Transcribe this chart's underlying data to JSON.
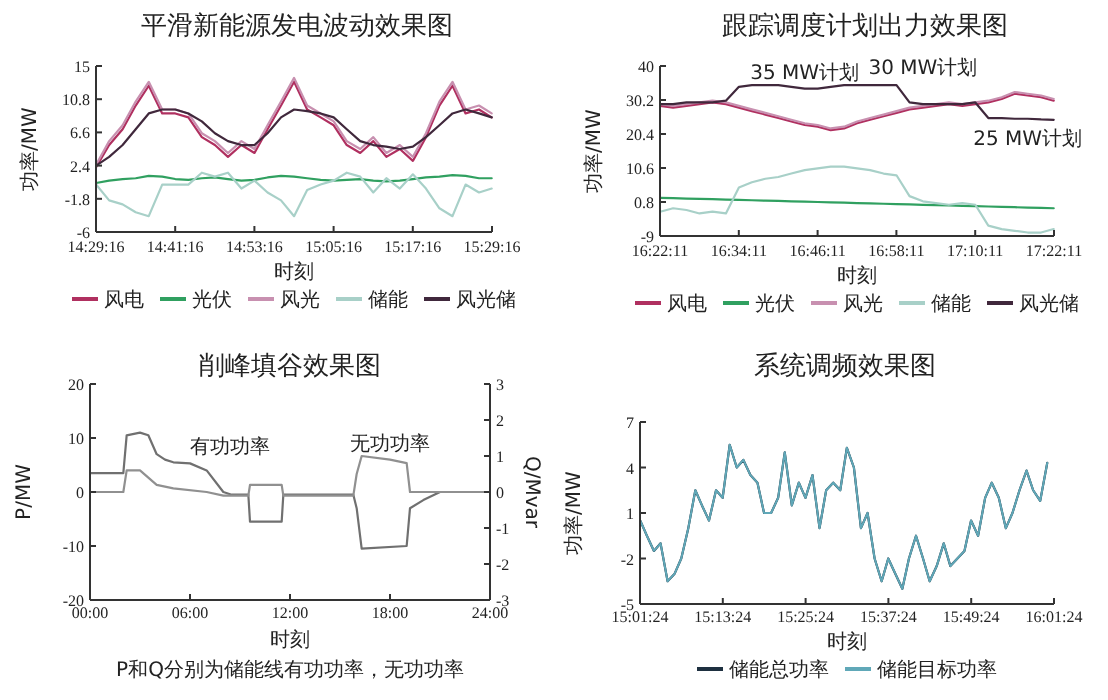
{
  "chart_data": [
    {
      "type": "line",
      "title": "平滑新能源发电波动效果图",
      "xlabel": "时刻",
      "ylabel": "功率/MW",
      "legend": "bottom",
      "xlim": [
        14.48778,
        15.48778
      ],
      "xticks": [
        {
          "value": 14.48778,
          "label": "14:29:16"
        },
        {
          "value": 14.68778,
          "label": "14:41:16"
        },
        {
          "value": 14.88778,
          "label": "14:53:16"
        },
        {
          "value": 15.08778,
          "label": "15:05:16"
        },
        {
          "value": 15.28778,
          "label": "15:17:16"
        },
        {
          "value": 15.48778,
          "label": "15:29:16"
        }
      ],
      "ylim": [
        -6,
        15
      ],
      "yticks": [
        -6,
        -1.8,
        2.4,
        6.6,
        10.8,
        15
      ],
      "x": [
        14.488,
        14.521,
        14.555,
        14.588,
        14.621,
        14.655,
        14.688,
        14.721,
        14.755,
        14.788,
        14.821,
        14.855,
        14.888,
        14.921,
        14.955,
        14.988,
        15.021,
        15.055,
        15.088,
        15.121,
        15.155,
        15.188,
        15.221,
        15.255,
        15.288,
        15.321,
        15.355,
        15.388,
        15.421,
        15.455,
        15.487
      ],
      "series": [
        {
          "name": "风电",
          "color": "#b03060",
          "values": [
            2.2,
            5,
            7,
            10,
            12.5,
            9,
            9,
            8.5,
            6,
            5,
            3.5,
            5,
            4,
            7,
            10,
            13,
            9.5,
            8.5,
            7.5,
            5,
            4,
            5.5,
            3.5,
            4.5,
            3,
            6,
            10,
            12.5,
            9,
            9.5,
            8.5
          ]
        },
        {
          "name": "光伏",
          "color": "#30a060",
          "values": [
            0.2,
            0.5,
            0.7,
            0.8,
            1.1,
            1,
            0.7,
            0.6,
            0.8,
            0.9,
            0.7,
            0.5,
            0.6,
            0.9,
            1.1,
            1,
            0.8,
            0.6,
            0.5,
            0.6,
            0.7,
            0.5,
            0.4,
            0.5,
            0.7,
            0.9,
            1,
            1.2,
            1.1,
            0.8,
            0.8
          ]
        },
        {
          "name": "风光",
          "color": "#c890b0",
          "values": [
            2.5,
            5.5,
            7.5,
            10.5,
            13,
            9.5,
            9.5,
            9,
            6.5,
            5.5,
            4,
            5.5,
            4.5,
            7.5,
            10.5,
            13.5,
            10,
            9,
            8,
            5.5,
            4.5,
            6,
            4,
            5,
            3.5,
            6.5,
            10.5,
            13,
            9.5,
            10,
            9
          ]
        },
        {
          "name": "储能",
          "color": "#a8d0c8",
          "values": [
            0,
            -2,
            -2.5,
            -3.5,
            -4,
            0,
            0,
            0,
            1.5,
            1,
            1.5,
            -0.5,
            0.5,
            -1,
            -2,
            -4,
            -0.7,
            0,
            0.5,
            1.5,
            1,
            -1,
            0.8,
            -0.5,
            1.3,
            -0.5,
            -3,
            -4,
            0,
            -1,
            -0.5
          ]
        },
        {
          "name": "风光储",
          "color": "#40283c",
          "values": [
            2.4,
            3.5,
            5,
            7,
            9,
            9.5,
            9.5,
            9,
            8,
            6.5,
            5.5,
            5,
            5,
            6.5,
            8.5,
            9.5,
            9.3,
            9,
            8.5,
            7,
            5.5,
            5,
            4.8,
            4.5,
            4.8,
            6,
            7.5,
            9,
            9.5,
            9,
            8.5
          ]
        }
      ]
    },
    {
      "type": "line",
      "title": "跟踪调度计划出力效果图",
      "xlabel": "时刻",
      "ylabel": "功率/MW",
      "legend": "bottom",
      "xlim": [
        16.36972,
        17.36972
      ],
      "xticks": [
        {
          "value": 16.36972,
          "label": "16:22:11"
        },
        {
          "value": 16.56972,
          "label": "16:34:11"
        },
        {
          "value": 16.76972,
          "label": "16:46:11"
        },
        {
          "value": 16.96972,
          "label": "16:58:11"
        },
        {
          "value": 17.16972,
          "label": "17:10:11"
        },
        {
          "value": 17.36972,
          "label": "17:22:11"
        }
      ],
      "ylim": [
        -9,
        40
      ],
      "yticks": [
        -9,
        0.8,
        10.6,
        20.4,
        30.2,
        40
      ],
      "annotations": [
        {
          "text": "35 MW计划",
          "x": 16.737,
          "y": 33.5
        },
        {
          "text": "30 MW计划",
          "x": 17.037,
          "y": 29
        },
        {
          "text": "25 MW计划",
          "x": 17.303,
          "y": 24.8
        }
      ],
      "x": [
        16.37,
        16.403,
        16.437,
        16.47,
        16.503,
        16.537,
        16.57,
        16.603,
        16.637,
        16.67,
        16.703,
        16.737,
        16.77,
        16.803,
        16.837,
        16.87,
        16.903,
        16.937,
        16.97,
        17.003,
        17.037,
        17.07,
        17.103,
        17.137,
        17.17,
        17.203,
        17.237,
        17.27,
        17.303,
        17.337,
        17.369
      ],
      "series": [
        {
          "name": "风电",
          "color": "#b03060",
          "values": [
            28.5,
            28,
            28.5,
            29,
            29.5,
            29,
            28,
            27,
            26,
            25,
            24,
            23,
            22.5,
            21.5,
            22,
            23.5,
            24.5,
            25.5,
            26.5,
            27.5,
            28,
            28.5,
            29,
            28.5,
            29,
            29.5,
            30.5,
            32,
            31.5,
            31,
            30
          ]
        },
        {
          "name": "光伏",
          "color": "#30a060",
          "values": [
            2,
            1.9,
            1.8,
            1.7,
            1.6,
            1.5,
            1.4,
            1.3,
            1.2,
            1.1,
            1,
            0.9,
            0.8,
            0.7,
            0.6,
            0.5,
            0.4,
            0.3,
            0.2,
            0.1,
            0,
            -0.1,
            -0.2,
            -0.3,
            -0.4,
            -0.5,
            -0.6,
            -0.7,
            -0.8,
            -0.9,
            -1
          ]
        },
        {
          "name": "风光",
          "color": "#c890b0",
          "values": [
            29,
            28.5,
            29,
            29.5,
            30,
            29.5,
            28.5,
            27.5,
            26.5,
            25.5,
            24.5,
            23.5,
            23,
            22,
            22.5,
            24,
            25,
            26,
            27,
            28,
            28.5,
            29,
            29.5,
            29,
            29.5,
            30,
            31,
            32.5,
            32,
            31.5,
            30.5
          ]
        },
        {
          "name": "储能",
          "color": "#a8d0c8",
          "values": [
            -2,
            -1,
            -1.5,
            -2.5,
            -2,
            -2.5,
            5,
            6.5,
            7.5,
            8,
            9,
            10,
            10.5,
            11,
            11,
            10.5,
            10,
            9,
            8.5,
            2.5,
            1,
            0.5,
            0,
            0.5,
            0,
            -6,
            -7,
            -7.5,
            -8,
            -8,
            -7
          ]
        },
        {
          "name": "风光储",
          "color": "#40283c",
          "values": [
            29,
            29,
            29.5,
            29.5,
            29.5,
            30,
            34,
            34.5,
            34.5,
            34.5,
            34,
            33.5,
            33.5,
            34,
            34.5,
            34.5,
            34.5,
            34.5,
            34.5,
            29.5,
            29,
            29,
            29,
            29,
            29.5,
            25,
            25,
            24.8,
            24.8,
            24.6,
            24.5
          ]
        }
      ]
    },
    {
      "type": "line",
      "title": "削峰填谷效果图",
      "xlabel": "时刻",
      "ylabel": "P/MW",
      "y2label": "Q/Mvar",
      "xlim": [
        0,
        24
      ],
      "xticks": [
        {
          "value": 0,
          "label": "00:00"
        },
        {
          "value": 6,
          "label": "06:00"
        },
        {
          "value": 12,
          "label": "12:00"
        },
        {
          "value": 18,
          "label": "18:00"
        },
        {
          "value": 24,
          "label": "24:00"
        }
      ],
      "ylim": [
        -20,
        20
      ],
      "yticks": [
        -20,
        -10,
        0,
        10,
        20
      ],
      "y2lim": [
        -3,
        3
      ],
      "y2ticks": [
        -3,
        -2,
        -1,
        0,
        1,
        2,
        3
      ],
      "annotations": [
        {
          "text": "有功功率",
          "x": 6,
          "y": 5.3
        },
        {
          "text": "无功功率",
          "x": 18,
          "y": 6
        },
        "P和Q分别为储能线有功功率，无功功率"
      ],
      "series": [
        {
          "color": "#707070",
          "x": [
            0,
            2,
            2.2,
            3,
            3.5,
            4,
            4.5,
            5,
            6,
            7,
            8,
            8.5,
            9.5,
            9.6,
            11.5,
            11.6,
            15.8,
            16,
            16.3,
            19,
            19.2,
            20,
            21,
            24
          ],
          "values": [
            3.5,
            3.5,
            10.5,
            11,
            10.5,
            7,
            6,
            5.5,
            5.3,
            4,
            0,
            -0.5,
            -0.5,
            -5.5,
            -5.5,
            -0.5,
            -0.5,
            -3,
            -10.5,
            -10,
            -3,
            -1.5,
            0,
            0
          ]
        },
        {
          "color": "#909090",
          "axis": "y2",
          "x": [
            0,
            2,
            2.2,
            3,
            4,
            5,
            7,
            8,
            9.5,
            9.6,
            11.5,
            11.6,
            15.8,
            16,
            16.3,
            18,
            19,
            19.2,
            24
          ],
          "values": [
            0,
            0,
            0.6,
            0.6,
            0.2,
            0.1,
            0,
            -0.1,
            -0.1,
            0.2,
            0.2,
            -0.1,
            -0.1,
            0.5,
            1,
            0.9,
            0.8,
            0,
            0
          ]
        }
      ]
    },
    {
      "type": "line",
      "title": "系统调频效果图",
      "xlabel": "时刻",
      "ylabel": "功率/MW",
      "legend": "bottom",
      "xlim": [
        15.02333,
        16.02333
      ],
      "xticks": [
        {
          "value": 15.02333,
          "label": "15:01:24"
        },
        {
          "value": 15.22333,
          "label": "15:13:24"
        },
        {
          "value": 15.42333,
          "label": "15:25:24"
        },
        {
          "value": 15.62333,
          "label": "15:37:24"
        },
        {
          "value": 15.82333,
          "label": "15:49:24"
        },
        {
          "value": 16.02333,
          "label": "16:01:24"
        }
      ],
      "ylim": [
        -5,
        7
      ],
      "yticks": [
        -5,
        -2,
        1,
        4,
        7
      ],
      "x": [
        15.024,
        15.04,
        15.057,
        15.073,
        15.09,
        15.107,
        15.123,
        15.14,
        15.157,
        15.173,
        15.19,
        15.207,
        15.223,
        15.24,
        15.257,
        15.273,
        15.29,
        15.307,
        15.323,
        15.34,
        15.357,
        15.373,
        15.39,
        15.407,
        15.423,
        15.44,
        15.457,
        15.473,
        15.49,
        15.507,
        15.523,
        15.54,
        15.557,
        15.573,
        15.59,
        15.607,
        15.623,
        15.64,
        15.657,
        15.673,
        15.69,
        15.707,
        15.723,
        15.74,
        15.757,
        15.773,
        15.79,
        15.807,
        15.823,
        15.84,
        15.857,
        15.873,
        15.89,
        15.907,
        15.923,
        15.94,
        15.957,
        15.973,
        15.99,
        16.007
      ],
      "series": [
        {
          "name": "储能总功率",
          "color": "#1e3040",
          "values": [
            0.5,
            -0.5,
            -1.5,
            -1,
            -3.5,
            -3,
            -2,
            0,
            2.5,
            1.5,
            0.5,
            2.5,
            2,
            5.5,
            4,
            4.5,
            3.5,
            3,
            1,
            1,
            2,
            5,
            1.5,
            3,
            2,
            3.5,
            0,
            2.5,
            3,
            2.5,
            5.3,
            4,
            0,
            1,
            -2,
            -3.5,
            -2,
            -3,
            -4,
            -2,
            -0.5,
            -2,
            -3.5,
            -2.5,
            -1,
            -2.5,
            -2,
            -1.5,
            0.5,
            -0.5,
            2,
            3,
            2,
            0,
            1,
            2.5,
            3.8,
            2.5,
            1.8,
            4.3
          ]
        },
        {
          "name": "储能目标功率",
          "color": "#60a8b8",
          "values": [
            0.5,
            -0.5,
            -1.5,
            -1,
            -3.5,
            -3,
            -2,
            0,
            2.5,
            1.5,
            0.5,
            2.5,
            2,
            5.5,
            4,
            4.5,
            3.5,
            3,
            1,
            1,
            2,
            5,
            1.5,
            3,
            2,
            3.5,
            0,
            2.5,
            3,
            2.5,
            5.3,
            4,
            0,
            1,
            -2,
            -3.5,
            -2,
            -3,
            -4,
            -2,
            -0.5,
            -2,
            -3.5,
            -2.5,
            -1,
            -2.5,
            -2,
            -1.5,
            0.5,
            -0.5,
            2,
            3,
            2,
            0,
            1,
            2.5,
            3.8,
            2.5,
            1.8,
            4.3
          ]
        }
      ]
    }
  ]
}
